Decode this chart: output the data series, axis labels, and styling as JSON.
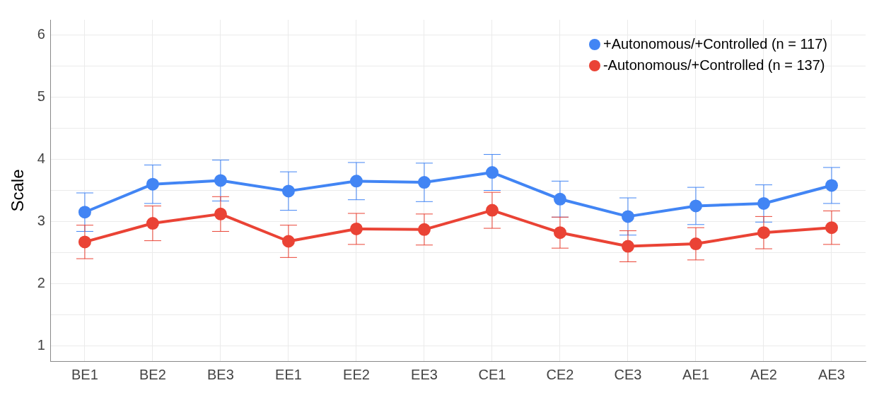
{
  "chart_data": {
    "type": "line",
    "ylabel": "Scale",
    "categories": [
      "BE1",
      "BE2",
      "BE3",
      "EE1",
      "EE2",
      "EE3",
      "CE1",
      "CE2",
      "CE3",
      "AE1",
      "AE2",
      "AE3"
    ],
    "ylim": [
      0.75,
      6.25
    ],
    "yticks": [
      1,
      {
        "value": 1.5,
        "label": null
      },
      2,
      {
        "value": 2.5,
        "label": null
      },
      3,
      {
        "value": 3.5,
        "label": null
      },
      4,
      {
        "value": 4.5,
        "label": null
      },
      5,
      {
        "value": 5.5,
        "label": null
      },
      6
    ],
    "grid": true,
    "legend": "top right",
    "marker": "circle",
    "line_style": "solid",
    "series": [
      {
        "name": "+Autonomous/+Controlled (n = 117)",
        "color": "#4285f4",
        "values": [
          3.15,
          3.6,
          3.66,
          3.49,
          3.65,
          3.63,
          3.79,
          3.36,
          3.08,
          3.25,
          3.29,
          3.58
        ],
        "errors": [
          0.31,
          0.31,
          0.33,
          0.31,
          0.3,
          0.31,
          0.29,
          0.29,
          0.3,
          0.3,
          0.3,
          0.29
        ]
      },
      {
        "name": "-Autonomous/+Controlled (n = 137)",
        "color": "#ea4335",
        "values": [
          2.67,
          2.97,
          3.12,
          2.68,
          2.88,
          2.87,
          3.18,
          2.82,
          2.6,
          2.64,
          2.82,
          2.9
        ],
        "errors": [
          0.27,
          0.28,
          0.28,
          0.26,
          0.25,
          0.25,
          0.29,
          0.25,
          0.25,
          0.26,
          0.26,
          0.27
        ]
      }
    ]
  }
}
